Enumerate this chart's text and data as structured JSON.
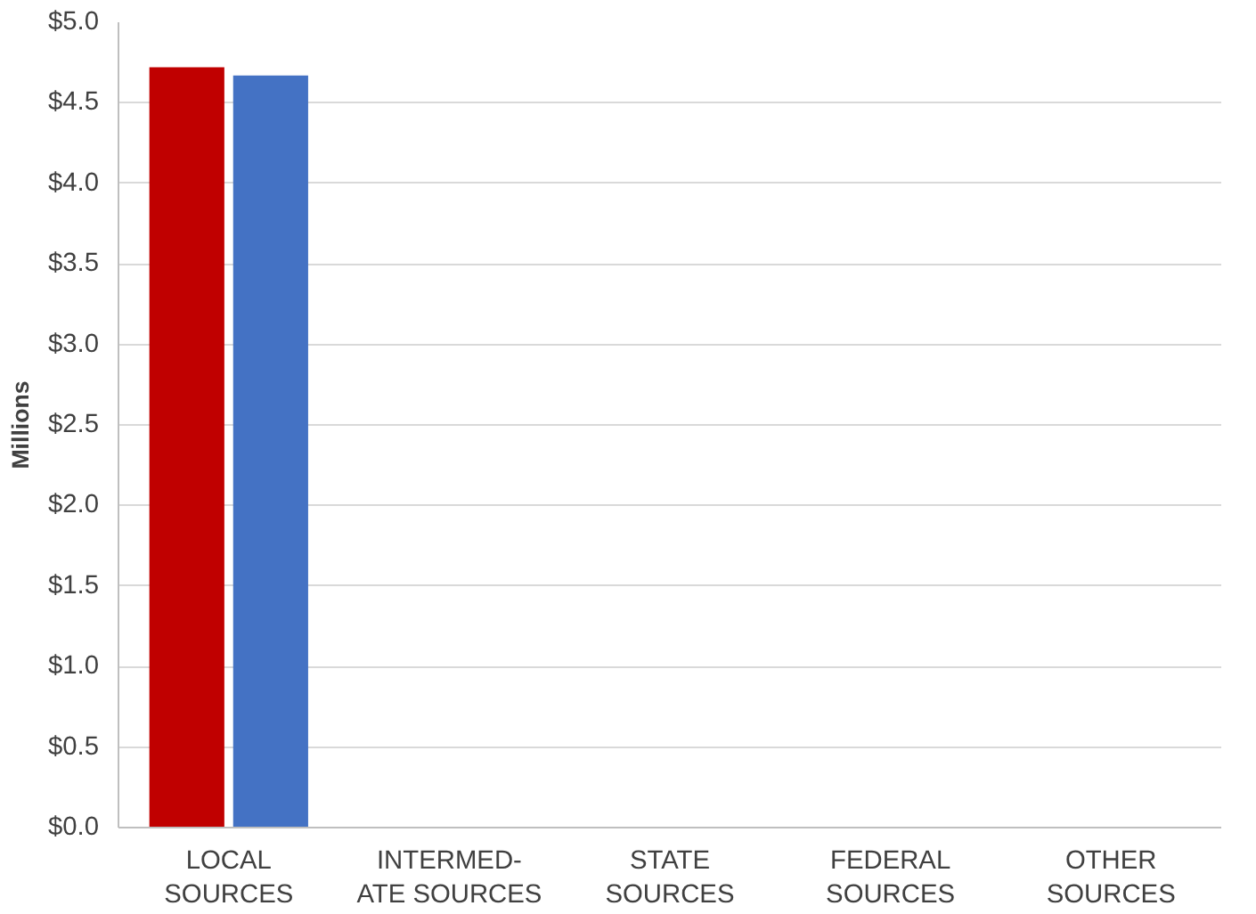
{
  "chart_data": {
    "type": "bar",
    "ylabel": "Millions",
    "categories": [
      "LOCAL\nSOURCES",
      "INTERMED-\nATE SOURCES",
      "STATE\nSOURCES",
      "FEDERAL\nSOURCES",
      "OTHER\nSOURCES"
    ],
    "series": [
      {
        "color": "#c00000",
        "values": [
          4.72,
          0,
          0,
          0,
          0
        ]
      },
      {
        "color": "#4472c4",
        "values": [
          4.67,
          0,
          0,
          0,
          0
        ]
      }
    ],
    "ylim": [
      0,
      5
    ],
    "yticks": [
      {
        "value": 0,
        "label": "$0.0"
      },
      {
        "value": 0.5,
        "label": "$0.5"
      },
      {
        "value": 1,
        "label": "$1.0"
      },
      {
        "value": 1.5,
        "label": "$1.5"
      },
      {
        "value": 2,
        "label": "$2.0"
      },
      {
        "value": 2.5,
        "label": "$2.5"
      },
      {
        "value": 3,
        "label": "$3.0"
      },
      {
        "value": 3.5,
        "label": "$3.5"
      },
      {
        "value": 4,
        "label": "$4.0"
      },
      {
        "value": 4.5,
        "label": "$4.5"
      },
      {
        "value": 5,
        "label": "$5.0"
      }
    ],
    "grid": "y"
  }
}
